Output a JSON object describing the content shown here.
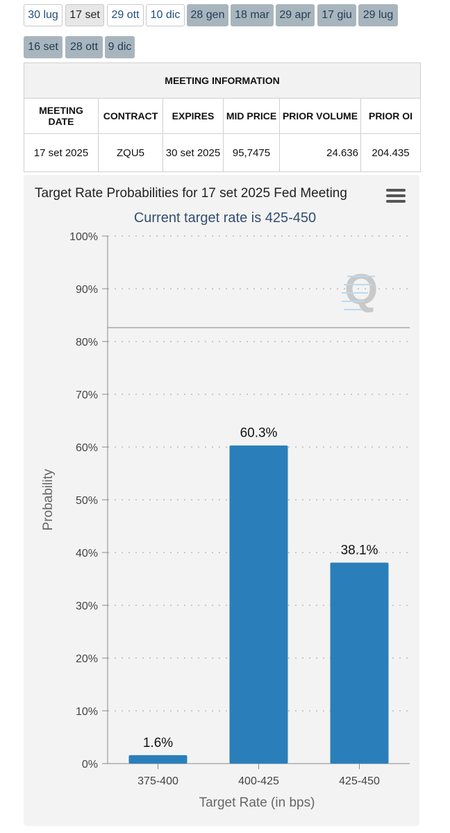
{
  "tabs": [
    {
      "label": "30 lug",
      "state": "normal"
    },
    {
      "label": "17 set",
      "state": "selected"
    },
    {
      "label": "29 ott",
      "state": "normal"
    },
    {
      "label": "10 dic",
      "state": "normal"
    },
    {
      "label": "28 gen",
      "state": "future"
    },
    {
      "label": "18 mar",
      "state": "future"
    },
    {
      "label": "29 apr",
      "state": "future"
    },
    {
      "label": "17 giu",
      "state": "future"
    },
    {
      "label": "29 lug",
      "state": "future"
    },
    {
      "label": "16 set",
      "state": "future"
    },
    {
      "label": "28 ott",
      "state": "future"
    },
    {
      "label": "9 dic",
      "state": "future"
    }
  ],
  "meeting_table": {
    "title": "MEETING INFORMATION",
    "headers": [
      "MEETING DATE",
      "CONTRACT",
      "EXPIRES",
      "MID PRICE",
      "PRIOR VOLUME",
      "PRIOR OI"
    ],
    "row": [
      "17 set 2025",
      "ZQU5",
      "30 set 2025",
      "95,7475",
      "24.636",
      "204.435"
    ]
  },
  "chart": {
    "title": "Target Rate Probabilities for 17 set 2025 Fed Meeting",
    "subtitle": "Current target rate is 425-450"
  },
  "chart_data": {
    "type": "bar",
    "categories": [
      "375-400",
      "400-425",
      "425-450"
    ],
    "values": [
      1.6,
      60.3,
      38.1
    ],
    "value_labels": [
      "1.6%",
      "60.3%",
      "38.1%"
    ],
    "xlabel": "Target Rate (in bps)",
    "ylabel": "Probability",
    "ylim": [
      0,
      100
    ],
    "yticks": [
      "0%",
      "10%",
      "20%",
      "30%",
      "40%",
      "50%",
      "60%",
      "70%",
      "80%",
      "90%",
      "100%"
    ],
    "grid": true,
    "bar_color": "#2a7fba"
  }
}
